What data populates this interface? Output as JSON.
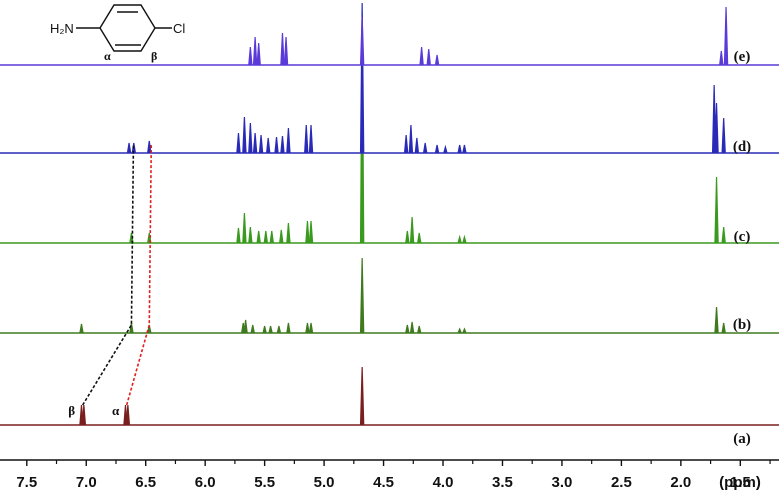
{
  "chart_data": {
    "type": "line",
    "subtype": "stacked NMR spectra",
    "xlabel": "(ppm)",
    "x_reversed": true,
    "xlim": [
      7.7,
      1.2
    ],
    "xticks": [
      "7.5",
      "7.0",
      "6.5",
      "6.0",
      "5.5",
      "5.0",
      "4.5",
      "4.0",
      "3.5",
      "3.0",
      "2.5",
      "2.0",
      "1.5"
    ],
    "grid": false,
    "series": [
      {
        "name": "(a)",
        "color": "#7a1f1f",
        "peaks": [
          {
            "x": 7.04,
            "h": 20
          },
          {
            "x": 7.02,
            "h": 20
          },
          {
            "x": 6.67,
            "h": 20
          },
          {
            "x": 6.65,
            "h": 20
          },
          {
            "x": 4.68,
            "h": 58
          }
        ]
      },
      {
        "name": "(b)",
        "color": "#3f7a1f",
        "peaks": [
          {
            "x": 7.04,
            "h": 9
          },
          {
            "x": 6.62,
            "h": 10
          },
          {
            "x": 6.47,
            "h": 8
          },
          {
            "x": 5.68,
            "h": 10
          },
          {
            "x": 5.66,
            "h": 13
          },
          {
            "x": 5.6,
            "h": 8
          },
          {
            "x": 5.5,
            "h": 7
          },
          {
            "x": 5.45,
            "h": 7
          },
          {
            "x": 5.38,
            "h": 7
          },
          {
            "x": 5.3,
            "h": 10
          },
          {
            "x": 5.14,
            "h": 10
          },
          {
            "x": 5.11,
            "h": 10
          },
          {
            "x": 4.68,
            "h": 75
          },
          {
            "x": 4.3,
            "h": 8
          },
          {
            "x": 4.26,
            "h": 11
          },
          {
            "x": 4.2,
            "h": 7
          },
          {
            "x": 3.86,
            "h": 4
          },
          {
            "x": 3.82,
            "h": 4
          },
          {
            "x": 1.7,
            "h": 26
          },
          {
            "x": 1.64,
            "h": 10
          }
        ]
      },
      {
        "name": "(c)",
        "color": "#3a9a1f",
        "peaks": [
          {
            "x": 6.62,
            "h": 10
          },
          {
            "x": 6.47,
            "h": 10
          },
          {
            "x": 5.72,
            "h": 15
          },
          {
            "x": 5.67,
            "h": 30
          },
          {
            "x": 5.62,
            "h": 16
          },
          {
            "x": 5.55,
            "h": 12
          },
          {
            "x": 5.49,
            "h": 12
          },
          {
            "x": 5.44,
            "h": 12
          },
          {
            "x": 5.36,
            "h": 13
          },
          {
            "x": 5.3,
            "h": 20
          },
          {
            "x": 5.14,
            "h": 22
          },
          {
            "x": 5.11,
            "h": 22
          },
          {
            "x": 4.68,
            "h": 230
          },
          {
            "x": 4.3,
            "h": 12
          },
          {
            "x": 4.26,
            "h": 26
          },
          {
            "x": 4.2,
            "h": 10
          },
          {
            "x": 3.86,
            "h": 6
          },
          {
            "x": 3.82,
            "h": 6
          },
          {
            "x": 1.7,
            "h": 66
          },
          {
            "x": 1.64,
            "h": 16
          }
        ]
      },
      {
        "name": "(d)",
        "color": "#2a2ab8",
        "peaks": [
          {
            "x": 6.64,
            "h": 10
          },
          {
            "x": 6.6,
            "h": 10
          },
          {
            "x": 6.47,
            "h": 12
          },
          {
            "x": 5.72,
            "h": 20
          },
          {
            "x": 5.67,
            "h": 36
          },
          {
            "x": 5.62,
            "h": 30
          },
          {
            "x": 5.58,
            "h": 20
          },
          {
            "x": 5.53,
            "h": 18
          },
          {
            "x": 5.47,
            "h": 15
          },
          {
            "x": 5.4,
            "h": 16
          },
          {
            "x": 5.35,
            "h": 17
          },
          {
            "x": 5.3,
            "h": 25
          },
          {
            "x": 5.15,
            "h": 28
          },
          {
            "x": 5.11,
            "h": 28
          },
          {
            "x": 4.68,
            "h": 150
          },
          {
            "x": 4.31,
            "h": 18
          },
          {
            "x": 4.27,
            "h": 28
          },
          {
            "x": 4.22,
            "h": 15
          },
          {
            "x": 4.15,
            "h": 10
          },
          {
            "x": 4.05,
            "h": 8
          },
          {
            "x": 3.98,
            "h": 6
          },
          {
            "x": 3.86,
            "h": 8
          },
          {
            "x": 3.82,
            "h": 8
          },
          {
            "x": 1.72,
            "h": 68
          },
          {
            "x": 1.7,
            "h": 50
          },
          {
            "x": 1.64,
            "h": 35
          }
        ]
      },
      {
        "name": "(e)",
        "color": "#5a3ad8",
        "peaks": [
          {
            "x": 5.62,
            "h": 18
          },
          {
            "x": 5.58,
            "h": 28
          },
          {
            "x": 5.55,
            "h": 22
          },
          {
            "x": 5.35,
            "h": 32
          },
          {
            "x": 5.32,
            "h": 28
          },
          {
            "x": 4.68,
            "h": 48
          },
          {
            "x": 4.18,
            "h": 18
          },
          {
            "x": 4.12,
            "h": 16
          },
          {
            "x": 4.05,
            "h": 10
          },
          {
            "x": 1.62,
            "h": 58
          },
          {
            "x": 1.66,
            "h": 14
          }
        ]
      }
    ],
    "peak_labels": [
      {
        "text": "β",
        "x": 7.03,
        "series": "(a)"
      },
      {
        "text": "α",
        "x": 6.66,
        "series": "(a)"
      }
    ],
    "correlation_lines": [
      {
        "color": "#111111",
        "dashed": true,
        "from_x": 7.03,
        "to_x": 6.62
      },
      {
        "color": "#e02020",
        "dashed": true,
        "from_x": 6.66,
        "to_x": 6.47
      }
    ]
  },
  "structure": {
    "left_group": "H₂N",
    "right_group": "Cl",
    "alpha": "α",
    "beta": "β"
  }
}
